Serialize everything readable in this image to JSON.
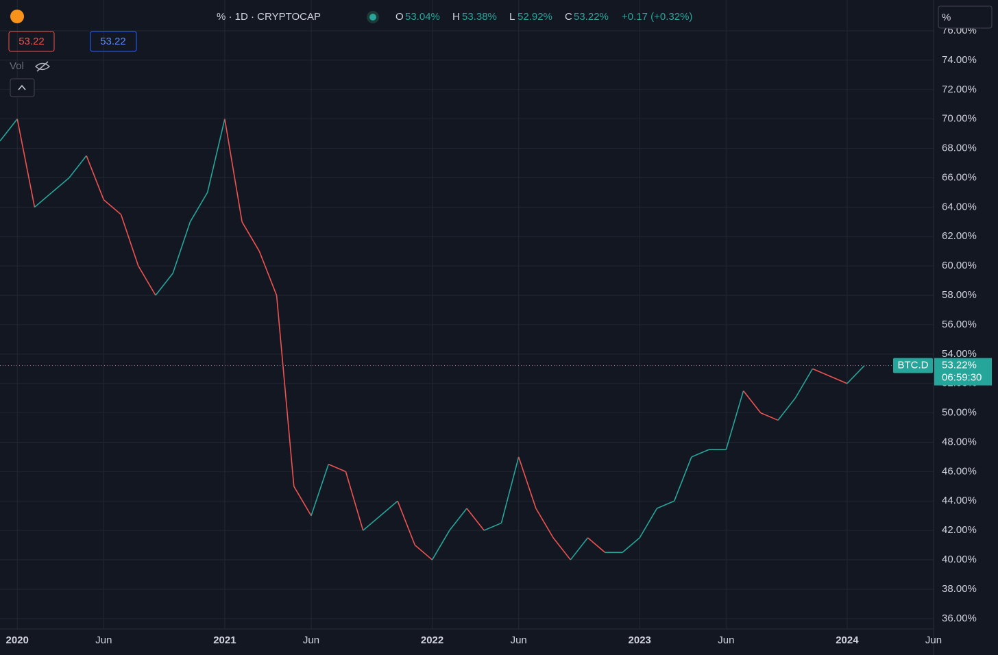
{
  "toolbar": {
    "symbol": "% · 1D · CRYPTOCAP",
    "o_label": "O",
    "o": "53.04%",
    "h_label": "H",
    "h": "53.38%",
    "l_label": "L",
    "l": "52.92%",
    "c_label": "C",
    "c": "53.22%",
    "change": "+0.17 (+0.32%)",
    "sell": "53.22",
    "buy": "53.22",
    "vol": "Vol",
    "scale_button": "%"
  },
  "chart_data": {
    "type": "line",
    "symbol_label": "BTC.D",
    "last_label": "53.22%",
    "countdown": "06:59:30",
    "up_color": "#26a69a",
    "down_color": "#ef5350",
    "grid": true,
    "x": [
      "2019-12",
      "2020-01",
      "2020-02",
      "2020-03",
      "2020-04",
      "2020-05",
      "2020-06",
      "2020-07",
      "2020-08",
      "2020-09",
      "2020-10",
      "2020-11",
      "2020-12",
      "2021-01",
      "2021-02",
      "2021-03",
      "2021-04",
      "2021-05",
      "2021-06",
      "2021-07",
      "2021-08",
      "2021-09",
      "2021-10",
      "2021-11",
      "2021-12",
      "2022-01",
      "2022-02",
      "2022-03",
      "2022-04",
      "2022-05",
      "2022-06",
      "2022-07",
      "2022-08",
      "2022-09",
      "2022-10",
      "2022-11",
      "2022-12",
      "2023-01",
      "2023-02",
      "2023-03",
      "2023-04",
      "2023-05",
      "2023-06",
      "2023-07",
      "2023-08",
      "2023-09",
      "2023-10",
      "2023-11",
      "2023-12",
      "2024-01",
      "2024-02"
    ],
    "values": [
      68.5,
      70,
      64,
      65,
      66,
      67.5,
      64.5,
      63.5,
      60,
      58,
      59.5,
      63,
      65,
      70,
      63,
      61,
      58,
      45,
      43,
      46.5,
      46,
      42,
      43,
      44,
      41,
      40,
      42,
      43.5,
      42,
      42.5,
      47,
      43.5,
      41.5,
      40,
      41.5,
      40.5,
      40.5,
      41.5,
      43.5,
      44,
      47,
      47.5,
      47.5,
      51.5,
      50,
      49.5,
      51,
      53,
      52.5,
      52,
      53.22
    ],
    "xlim": [
      "2019-12",
      "2024-06"
    ],
    "xticks": [
      {
        "value": "2020-01",
        "label": "2020"
      },
      {
        "value": "2020-06",
        "label": "Jun"
      },
      {
        "value": "2021-01",
        "label": "2021"
      },
      {
        "value": "2021-06",
        "label": "Jun"
      },
      {
        "value": "2022-01",
        "label": "2022"
      },
      {
        "value": "2022-06",
        "label": "Jun"
      },
      {
        "value": "2023-01",
        "label": "2023"
      },
      {
        "value": "2023-06",
        "label": "Jun"
      },
      {
        "value": "2024-01",
        "label": "2024"
      },
      {
        "value": "2024-06",
        "label": "Jun"
      }
    ],
    "ylim": [
      35.2,
      76
    ],
    "yticks": [
      {
        "value": 36,
        "label": "36.00%"
      },
      {
        "value": 38,
        "label": "38.00%"
      },
      {
        "value": 40,
        "label": "40.00%"
      },
      {
        "value": 42,
        "label": "42.00%"
      },
      {
        "value": 44,
        "label": "44.00%"
      },
      {
        "value": 46,
        "label": "46.00%"
      },
      {
        "value": 48,
        "label": "48.00%"
      },
      {
        "value": 50,
        "label": "50.00%"
      },
      {
        "value": 52,
        "label": "52.00%"
      },
      {
        "value": 54,
        "label": "54.00%"
      },
      {
        "value": 56,
        "label": "56.00%"
      },
      {
        "value": 58,
        "label": "58.00%"
      },
      {
        "value": 60,
        "label": "60.00%"
      },
      {
        "value": 62,
        "label": "62.00%"
      },
      {
        "value": 64,
        "label": "64.00%"
      },
      {
        "value": 66,
        "label": "66.00%"
      },
      {
        "value": 68,
        "label": "68.00%"
      },
      {
        "value": 70,
        "label": "70.00%"
      },
      {
        "value": 72,
        "label": "72.00%"
      },
      {
        "value": 74,
        "label": "74.00%"
      },
      {
        "value": 76,
        "label": "76.00%"
      }
    ]
  }
}
